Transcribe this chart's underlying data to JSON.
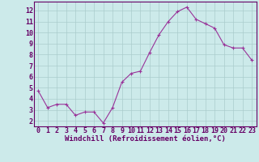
{
  "x": [
    0,
    1,
    2,
    3,
    4,
    5,
    6,
    7,
    8,
    9,
    10,
    11,
    12,
    13,
    14,
    15,
    16,
    17,
    18,
    19,
    20,
    21,
    22,
    23
  ],
  "y": [
    4.7,
    3.2,
    3.5,
    3.5,
    2.5,
    2.8,
    2.8,
    1.8,
    3.2,
    5.5,
    6.3,
    6.5,
    8.2,
    9.8,
    11.0,
    11.9,
    12.3,
    11.2,
    10.8,
    10.4,
    8.9,
    8.6,
    8.6,
    7.5
  ],
  "line_color": "#993399",
  "marker": "+",
  "xlabel": "Windchill (Refroidissement éolien,°C)",
  "ylim": [
    1.5,
    12.8
  ],
  "xlim": [
    -0.5,
    23.5
  ],
  "bg_color": "#cceaea",
  "grid_color": "#aacccc",
  "tick_color": "#660066",
  "xlabel_fontsize": 6.5,
  "tick_fontsize": 6.0,
  "yticks": [
    2,
    3,
    4,
    5,
    6,
    7,
    8,
    9,
    10,
    11,
    12
  ]
}
